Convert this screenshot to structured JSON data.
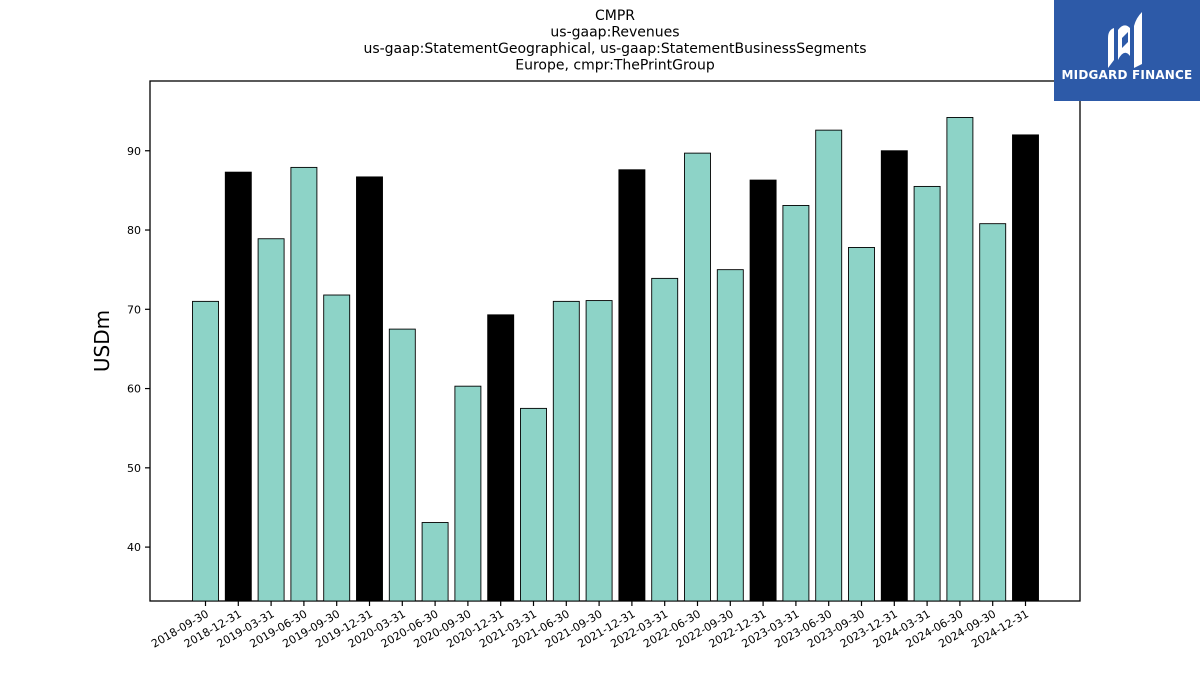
{
  "chart_data": {
    "type": "bar",
    "title_lines": [
      "CMPR",
      "us-gaap:Revenues",
      "us-gaap:StatementGeographical, us-gaap:StatementBusinessSegments",
      "Europe, cmpr:ThePrintGroup"
    ],
    "ylabel": "USDm",
    "xlabel": "",
    "ylim": [
      33.2,
      98.8
    ],
    "yticks": [
      40,
      50,
      60,
      70,
      80,
      90
    ],
    "categories": [
      "2018-09-30",
      "2018-12-31",
      "2019-03-31",
      "2019-06-30",
      "2019-09-30",
      "2019-12-31",
      "2020-03-31",
      "2020-06-30",
      "2020-09-30",
      "2020-12-31",
      "2021-03-31",
      "2021-06-30",
      "2021-09-30",
      "2021-12-31",
      "2022-03-31",
      "2022-06-30",
      "2022-09-30",
      "2022-12-31",
      "2023-03-31",
      "2023-06-30",
      "2023-09-30",
      "2023-12-31",
      "2024-03-31",
      "2024-06-30",
      "2024-09-30",
      "2024-12-31"
    ],
    "values": [
      71.0,
      87.3,
      78.9,
      87.9,
      71.8,
      86.7,
      67.5,
      43.1,
      60.3,
      69.3,
      57.5,
      71.0,
      71.1,
      87.6,
      73.9,
      89.7,
      75.0,
      86.3,
      83.1,
      92.6,
      77.8,
      90.0,
      85.5,
      94.2,
      80.8,
      92.0
    ],
    "highlight": [
      false,
      true,
      false,
      false,
      false,
      true,
      false,
      false,
      false,
      true,
      false,
      false,
      false,
      true,
      false,
      false,
      false,
      true,
      false,
      false,
      false,
      true,
      false,
      false,
      false,
      true
    ],
    "colors": {
      "normal": "#8dd3c7",
      "highlight": "#000000",
      "edge": "#000000"
    },
    "grid": false
  },
  "logo": {
    "text": "MIDGARD FINANCE",
    "background": "#2d5aa8"
  }
}
